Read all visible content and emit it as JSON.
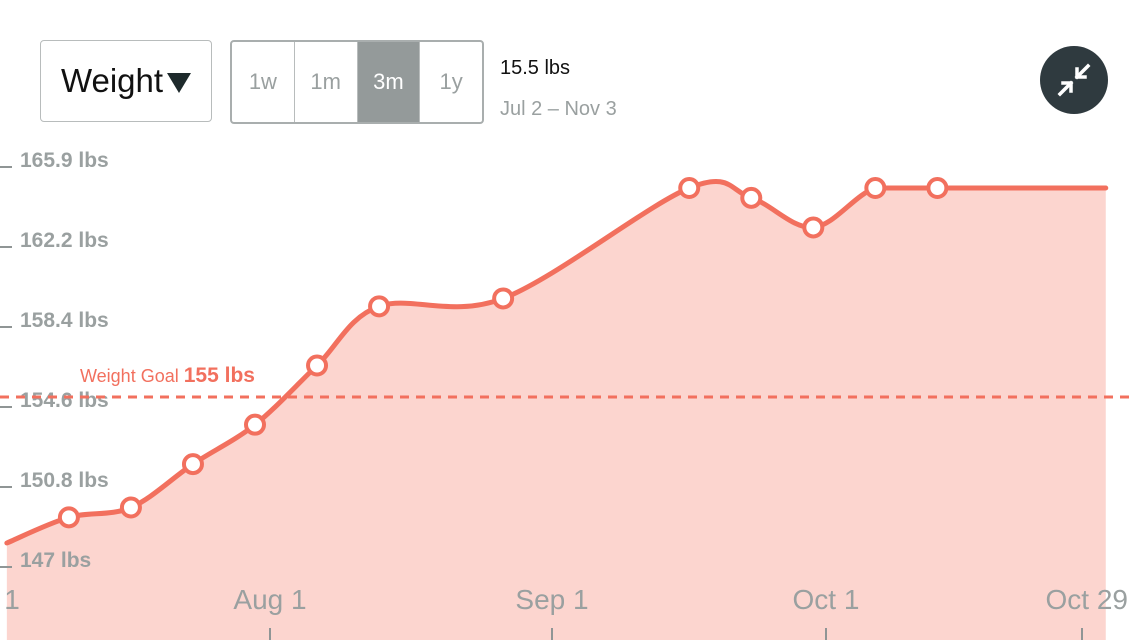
{
  "controls": {
    "metric_label": "Weight",
    "ranges": [
      "1w",
      "1m",
      "3m",
      "1y"
    ],
    "active_range": "3m",
    "summary_value": "15.5 lbs",
    "summary_range": "Jul 2 – Nov 3"
  },
  "icons": {
    "metric_caret": "caret-down-icon",
    "collapse": "collapse-arrows-icon"
  },
  "colors": {
    "line": "#f2705e",
    "area": "#fcd5cf",
    "axis_text": "#9aa0a0",
    "active_range_bg": "#949a9a",
    "collapse_bg": "#2f3a3f"
  },
  "chart_data": {
    "type": "area",
    "x_type": "date",
    "x_tick_labels": [
      "1",
      "Aug 1",
      "Sep 1",
      "Oct 1",
      "Oct 29"
    ],
    "y_tick_labels": [
      "147 lbs",
      "150.8 lbs",
      "154.6 lbs",
      "158.4 lbs",
      "162.2 lbs",
      "165.9 lbs"
    ],
    "y_ticks": [
      147,
      150.8,
      154.6,
      158.4,
      162.2,
      165.9
    ],
    "ylim": [
      147,
      165.9
    ],
    "xlim": [
      "Jul 2",
      "Nov 3"
    ],
    "series": [
      {
        "x": [
          "Jul 2",
          "Jul 9",
          "Jul 16",
          "Jul 23",
          "Jul 30",
          "Aug 6",
          "Aug 13",
          "Aug 27",
          "Sep 17",
          "Sep 24",
          "Oct 1",
          "Oct 8",
          "Oct 15",
          "Nov 3"
        ],
        "y": [
          147.0,
          148.3,
          148.8,
          151.0,
          153.0,
          156.0,
          159.0,
          159.4,
          165.0,
          164.5,
          163.0,
          165.0,
          165.0,
          165.0
        ],
        "markers": [
          false,
          true,
          true,
          true,
          true,
          true,
          true,
          true,
          true,
          true,
          true,
          true,
          true,
          false
        ]
      }
    ],
    "goal": {
      "label": "Weight Goal",
      "value_label": "155 lbs",
      "value": 155
    },
    "grid": false
  }
}
